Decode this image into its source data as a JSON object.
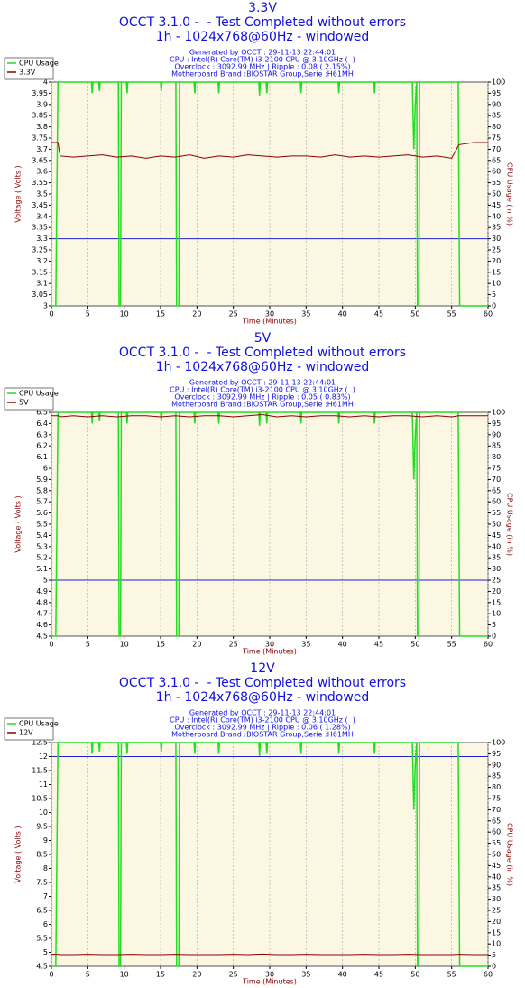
{
  "chart_data": [
    {
      "type": "line",
      "title": [
        "3.3V",
        "OCCT 3.1.0 -  - Test Completed without errors",
        "1h - 1024x768@60Hz - windowed"
      ],
      "info": [
        "Generated by OCCT : 29-11-13 22:44:01",
        "CPU : Intel(R) Core(TM) i3-2100 CPU @ 3.10GHz (  )",
        "Overclock : 3092.99 MHz | Ripple : 0.08 ( 2.15%)",
        "Motherboard Brand :BIOSTAR Group,Serie :H61MH"
      ],
      "xlabel": "Time (Minutes)",
      "ylabel": "Voltage ( Volts )",
      "y2label": "CPU Usage (in %)",
      "xlim": [
        0,
        60
      ],
      "xticks": [
        0,
        5,
        10,
        15,
        20,
        25,
        30,
        35,
        40,
        45,
        50,
        55,
        60
      ],
      "ylim": [
        3,
        4
      ],
      "yticks": [
        3,
        3.05,
        3.1,
        3.15,
        3.2,
        3.25,
        3.3,
        3.35,
        3.4,
        3.45,
        3.5,
        3.55,
        3.6,
        3.65,
        3.7,
        3.75,
        3.8,
        3.85,
        3.9,
        3.95,
        4
      ],
      "y2lim": [
        0,
        100
      ],
      "y2ticks": [
        0,
        5,
        10,
        15,
        20,
        25,
        30,
        35,
        40,
        45,
        50,
        55,
        60,
        65,
        70,
        75,
        80,
        85,
        90,
        95,
        100
      ],
      "grid": true,
      "reference_line": 3.3,
      "reference_color": "#2020d0",
      "series": [
        {
          "name": "CPU Usage",
          "color": "#22dd22",
          "axis": "y2",
          "x": [
            0,
            0.6,
            0.9,
            5.5,
            5.6,
            5.7,
            6.5,
            6.6,
            6.7,
            9.2,
            9.3,
            9.5,
            9.6,
            10.3,
            10.4,
            10.5,
            15.0,
            15.1,
            15.2,
            17.1,
            17.2,
            17.5,
            17.6,
            19.6,
            19.7,
            19.8,
            22.9,
            23.0,
            23.1,
            28.5,
            28.6,
            28.7,
            29.5,
            29.6,
            29.7,
            34.2,
            34.3,
            34.4,
            39.4,
            39.5,
            39.6,
            44.3,
            44.4,
            44.5,
            49.6,
            49.8,
            50.0,
            50.2,
            50.3,
            50.5,
            50.6,
            55.9,
            56.1,
            60
          ],
          "values": [
            0,
            0,
            100,
            100,
            95,
            100,
            100,
            96,
            100,
            100,
            0,
            0,
            100,
            100,
            95,
            100,
            100,
            96,
            100,
            100,
            0,
            0,
            100,
            100,
            95,
            100,
            100,
            95,
            100,
            100,
            94,
            100,
            100,
            95,
            100,
            100,
            95,
            100,
            100,
            95,
            100,
            100,
            95,
            100,
            100,
            70,
            90,
            100,
            0,
            0,
            100,
            100,
            0,
            0
          ]
        },
        {
          "name": "3.3V",
          "color": "#8b0000",
          "x": [
            0,
            0.9,
            1.2,
            3,
            5,
            7,
            9,
            11,
            13,
            15,
            17,
            19,
            21,
            23,
            25,
            27,
            29,
            31,
            33,
            35,
            37,
            39,
            41,
            43,
            45,
            47,
            49,
            51,
            53,
            55,
            56,
            58,
            60
          ],
          "values": [
            3.73,
            3.73,
            3.67,
            3.665,
            3.67,
            3.675,
            3.665,
            3.67,
            3.66,
            3.67,
            3.665,
            3.675,
            3.66,
            3.67,
            3.665,
            3.675,
            3.67,
            3.665,
            3.67,
            3.67,
            3.665,
            3.675,
            3.665,
            3.67,
            3.665,
            3.67,
            3.675,
            3.665,
            3.67,
            3.66,
            3.72,
            3.73,
            3.73
          ]
        }
      ]
    },
    {
      "type": "line",
      "title": [
        "5V",
        "OCCT 3.1.0 -  - Test Completed without errors",
        "1h - 1024x768@60Hz - windowed"
      ],
      "info": [
        "Generated by OCCT : 29-11-13 22:44:01",
        "CPU : Intel(R) Core(TM) i3-2100 CPU @ 3.10GHz (  )",
        "Overclock : 3092.99 MHz | Ripple : 0.05 ( 0.83%)",
        "Motherboard Brand :BIOSTAR Group,Serie :H61MH"
      ],
      "xlabel": "Time (Minutes)",
      "ylabel": "Voltage ( Volts )",
      "y2label": "CPU Usage (in %)",
      "xlim": [
        0,
        60
      ],
      "xticks": [
        0,
        5,
        10,
        15,
        20,
        25,
        30,
        35,
        40,
        45,
        50,
        55,
        60
      ],
      "ylim": [
        4.5,
        6.5
      ],
      "yticks": [
        4.5,
        4.6,
        4.7,
        4.8,
        4.9,
        5,
        5.1,
        5.2,
        5.3,
        5.4,
        5.5,
        5.6,
        5.7,
        5.8,
        5.9,
        6,
        6.1,
        6.2,
        6.3,
        6.4,
        6.5
      ],
      "y2lim": [
        0,
        100
      ],
      "y2ticks": [
        0,
        5,
        10,
        15,
        20,
        25,
        30,
        35,
        40,
        45,
        50,
        55,
        60,
        65,
        70,
        75,
        80,
        85,
        90,
        95,
        100
      ],
      "grid": true,
      "reference_line": 5,
      "reference_color": "#2020d0",
      "series": [
        {
          "name": "CPU Usage",
          "color": "#22dd22",
          "axis": "y2",
          "x": [
            0,
            0.6,
            0.9,
            5.5,
            5.6,
            5.7,
            6.5,
            6.6,
            6.7,
            9.2,
            9.3,
            9.5,
            9.6,
            10.3,
            10.4,
            10.5,
            15.0,
            15.1,
            15.2,
            17.1,
            17.2,
            17.5,
            17.6,
            19.6,
            19.7,
            19.8,
            22.9,
            23.0,
            23.1,
            28.5,
            28.6,
            28.7,
            29.5,
            29.6,
            29.7,
            34.2,
            34.3,
            34.4,
            39.4,
            39.5,
            39.6,
            44.3,
            44.4,
            44.5,
            49.6,
            49.8,
            50.0,
            50.2,
            50.3,
            50.5,
            50.6,
            55.9,
            56.1,
            60
          ],
          "values": [
            0,
            0,
            100,
            100,
            95,
            100,
            100,
            96,
            100,
            100,
            0,
            0,
            100,
            100,
            95,
            100,
            100,
            96,
            100,
            100,
            0,
            0,
            100,
            100,
            95,
            100,
            100,
            95,
            100,
            100,
            94,
            100,
            100,
            95,
            100,
            100,
            95,
            100,
            100,
            95,
            100,
            100,
            95,
            100,
            100,
            70,
            90,
            100,
            0,
            0,
            100,
            100,
            0,
            0
          ]
        },
        {
          "name": "5V",
          "color": "#8b0000",
          "x": [
            0,
            0.9,
            1.2,
            3,
            5,
            7,
            9,
            11,
            13,
            15,
            17,
            19,
            21,
            23,
            25,
            27,
            29,
            31,
            33,
            35,
            37,
            39,
            41,
            43,
            45,
            47,
            49,
            51,
            53,
            55,
            56,
            58,
            60
          ],
          "values": [
            6.47,
            6.47,
            6.46,
            6.47,
            6.46,
            6.47,
            6.46,
            6.47,
            6.47,
            6.46,
            6.47,
            6.46,
            6.47,
            6.47,
            6.46,
            6.47,
            6.48,
            6.46,
            6.47,
            6.46,
            6.47,
            6.47,
            6.46,
            6.47,
            6.46,
            6.47,
            6.47,
            6.46,
            6.47,
            6.46,
            6.47,
            6.47,
            6.47
          ]
        }
      ]
    },
    {
      "type": "line",
      "title": [
        "12V",
        "OCCT 3.1.0 -  - Test Completed without errors",
        "1h - 1024x768@60Hz - windowed"
      ],
      "info": [
        "Generated by OCCT : 29-11-13 22:44:01",
        "CPU : Intel(R) Core(TM) i3-2100 CPU @ 3.10GHz (  )",
        "Overclock : 3092.99 MHz | Ripple : 0.06 ( 1.28%)",
        "Motherboard Brand :BIOSTAR Group,Serie :H61MH"
      ],
      "xlabel": "Time (Minutes)",
      "ylabel": "Voltage ( Volts )",
      "y2label": "CPU Usage (in %)",
      "xlim": [
        0,
        60
      ],
      "xticks": [
        0,
        5,
        10,
        15,
        20,
        25,
        30,
        35,
        40,
        45,
        50,
        55,
        60
      ],
      "ylim": [
        4.5,
        12.5
      ],
      "yticks": [
        4.5,
        5,
        5.5,
        6,
        6.5,
        7,
        7.5,
        8,
        8.5,
        9,
        9.5,
        10,
        10.5,
        11,
        11.5,
        12,
        12.5
      ],
      "y2lim": [
        0,
        100
      ],
      "y2ticks": [
        0,
        5,
        10,
        15,
        20,
        25,
        30,
        35,
        40,
        45,
        50,
        55,
        60,
        65,
        70,
        75,
        80,
        85,
        90,
        95,
        100
      ],
      "grid": true,
      "reference_line": 12,
      "reference_color": "#2020d0",
      "series": [
        {
          "name": "CPU Usage",
          "color": "#22dd22",
          "axis": "y2",
          "x": [
            0,
            0.6,
            0.9,
            5.5,
            5.6,
            5.7,
            6.5,
            6.6,
            6.7,
            9.2,
            9.3,
            9.5,
            9.6,
            10.3,
            10.4,
            10.5,
            15.0,
            15.1,
            15.2,
            17.1,
            17.2,
            17.5,
            17.6,
            19.6,
            19.7,
            19.8,
            22.9,
            23.0,
            23.1,
            28.5,
            28.6,
            28.7,
            29.5,
            29.6,
            29.7,
            34.2,
            34.3,
            34.4,
            39.4,
            39.5,
            39.6,
            44.3,
            44.4,
            44.5,
            49.6,
            49.8,
            50.0,
            50.2,
            50.3,
            50.5,
            50.6,
            55.9,
            56.1,
            60
          ],
          "values": [
            0,
            0,
            100,
            100,
            95,
            100,
            100,
            96,
            100,
            100,
            0,
            0,
            100,
            100,
            95,
            100,
            100,
            96,
            100,
            100,
            0,
            0,
            100,
            100,
            95,
            100,
            100,
            95,
            100,
            100,
            94,
            100,
            100,
            95,
            100,
            100,
            95,
            100,
            100,
            95,
            100,
            100,
            95,
            100,
            100,
            70,
            90,
            100,
            0,
            0,
            100,
            100,
            0,
            0
          ]
        },
        {
          "name": "12V",
          "color": "#8b0000",
          "x": [
            0,
            0.9,
            1.2,
            3,
            5,
            7,
            9,
            11,
            13,
            15,
            17,
            19,
            21,
            23,
            25,
            27,
            29,
            31,
            33,
            35,
            37,
            39,
            41,
            43,
            45,
            47,
            49,
            51,
            53,
            55,
            56,
            58,
            60
          ],
          "values": [
            4.93,
            4.93,
            4.92,
            4.92,
            4.93,
            4.92,
            4.92,
            4.93,
            4.92,
            4.92,
            4.93,
            4.92,
            4.92,
            4.92,
            4.93,
            4.92,
            4.94,
            4.92,
            4.92,
            4.93,
            4.92,
            4.92,
            4.92,
            4.93,
            4.92,
            4.92,
            4.93,
            4.92,
            4.92,
            4.92,
            4.93,
            4.92,
            4.92
          ]
        }
      ]
    }
  ]
}
